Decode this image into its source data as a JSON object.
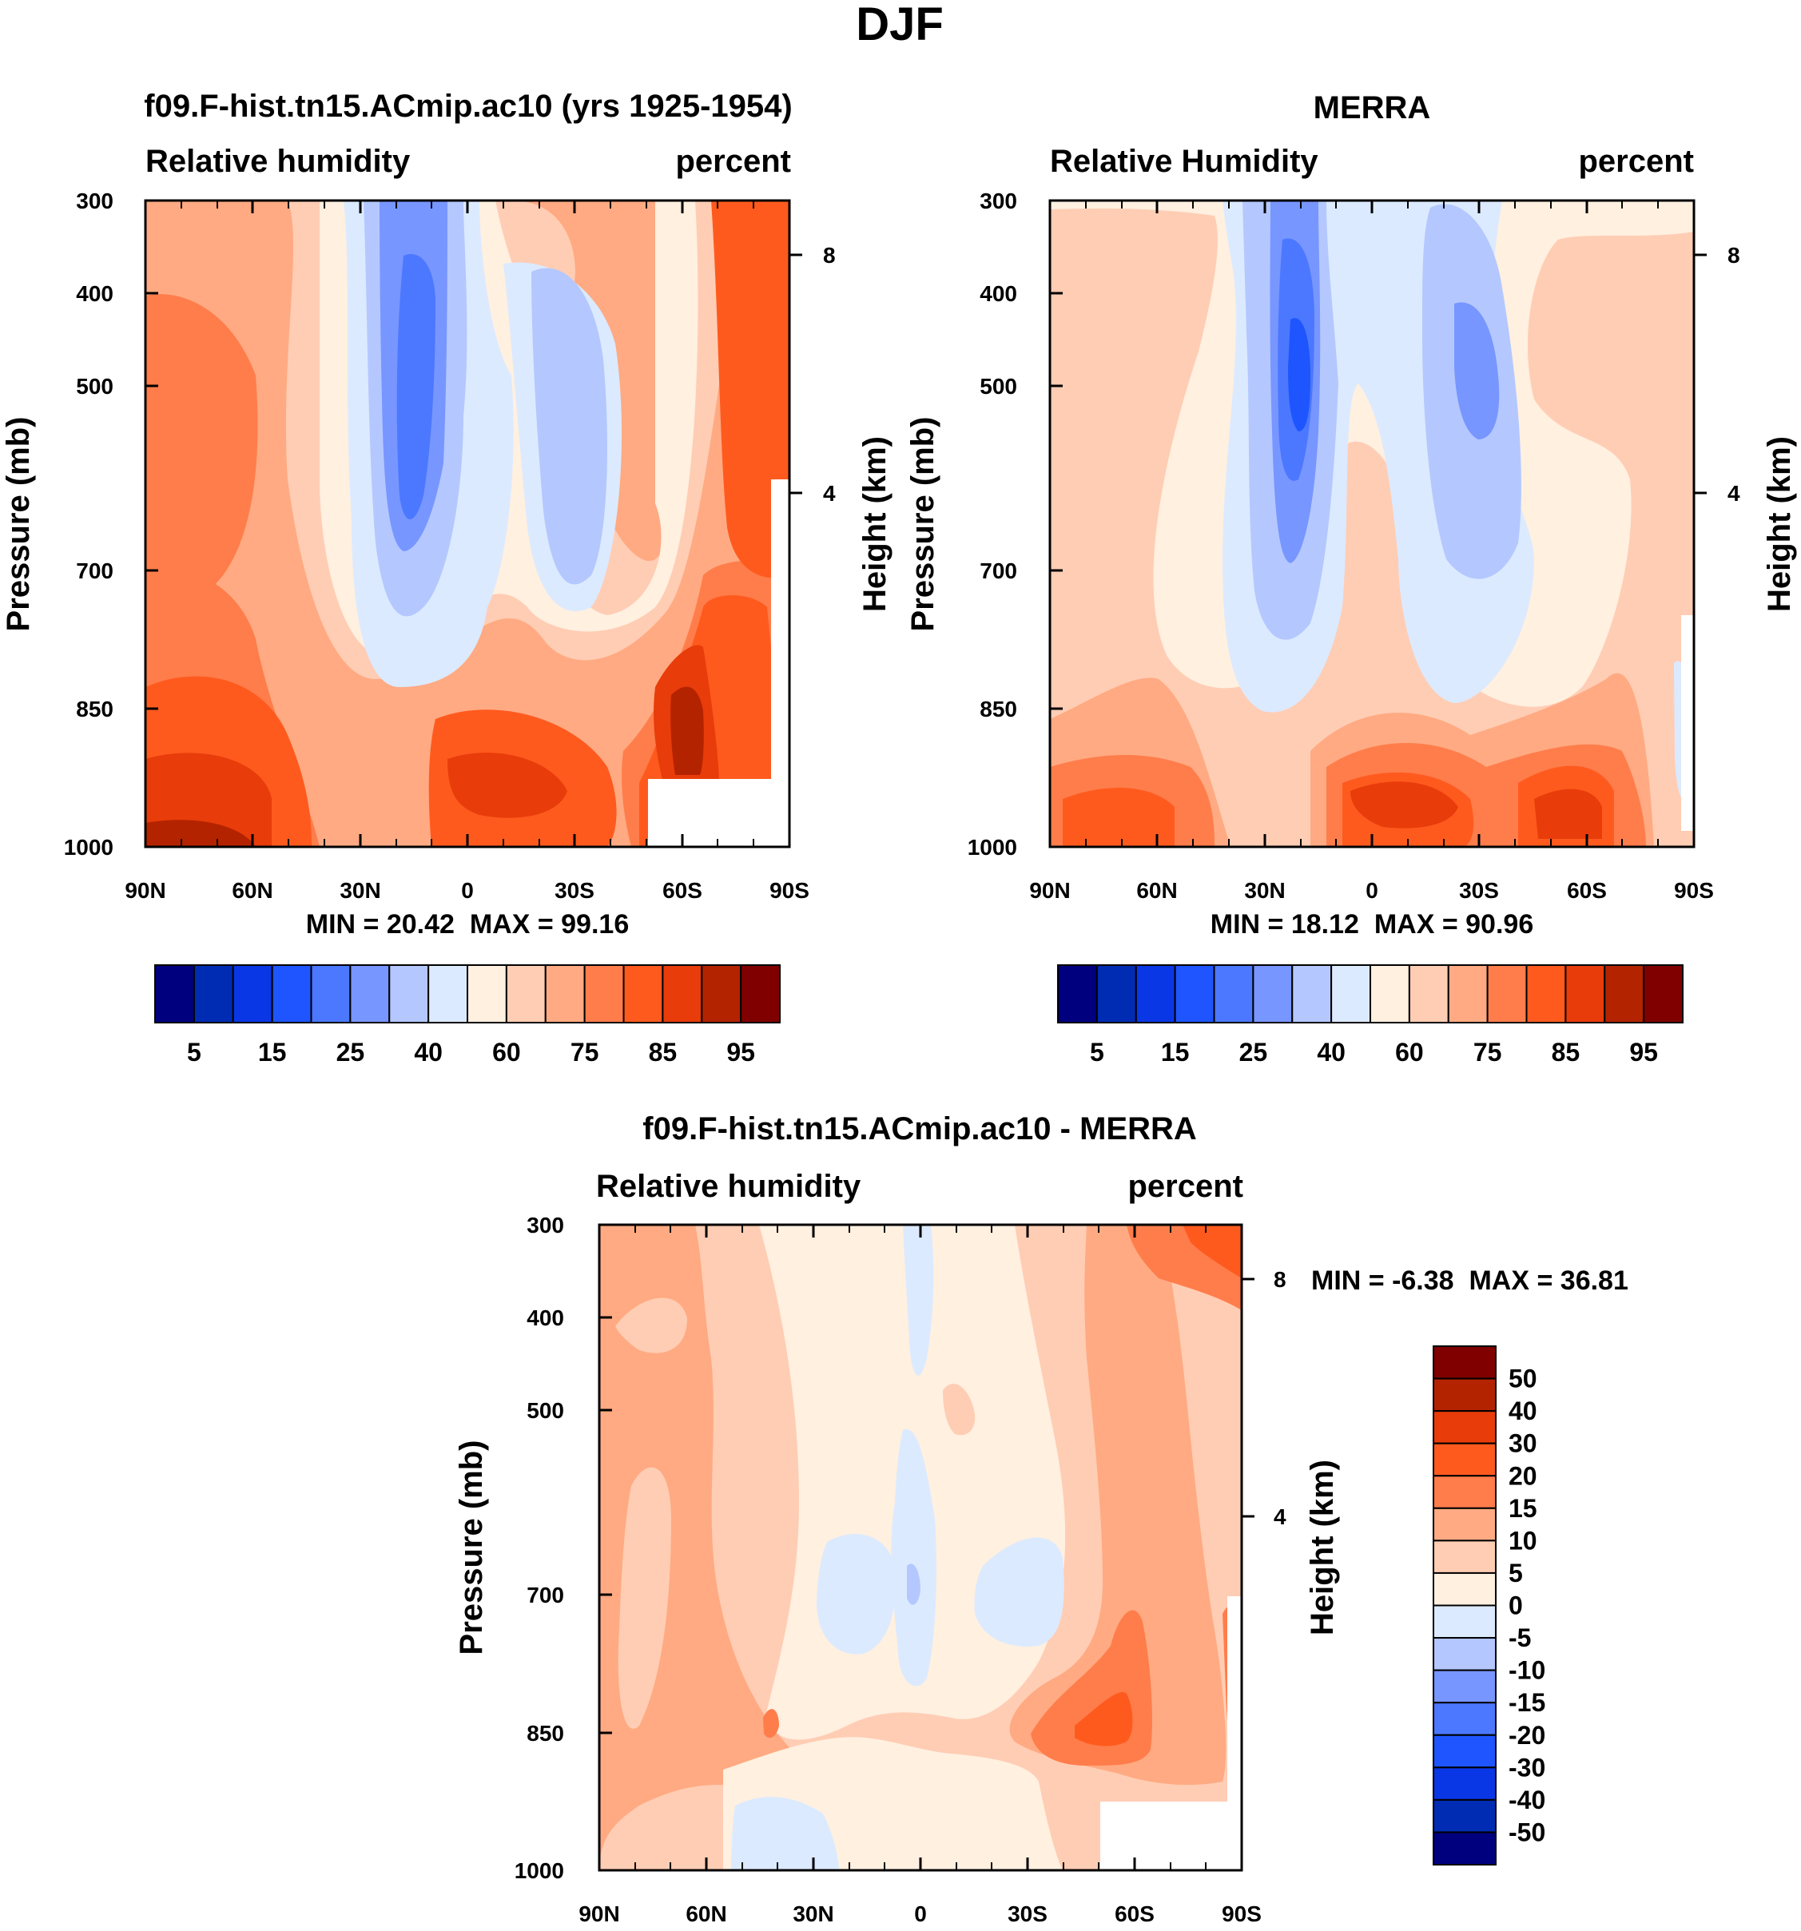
{
  "figure_title": "DJF",
  "chart_data": [
    {
      "id": "model",
      "type": "heatmap",
      "title": "f09.F-hist.tn15.ACmip.ac10 (yrs 1925-1954)",
      "left_label": "Relative humidity",
      "right_label": "percent",
      "xlabel": "",
      "ylabel": "Pressure (mb)",
      "y2label": "Height (km)",
      "x_ticks": [
        "90N",
        "60N",
        "30N",
        "0",
        "30S",
        "60S",
        "90S"
      ],
      "y_ticks": [
        "300",
        "400",
        "500",
        "700",
        "850",
        "1000"
      ],
      "y2_ticks": [
        "8",
        "4"
      ],
      "min_label": "MIN =",
      "min_value": "20.42",
      "max_label": "MAX =",
      "max_value": "99.16",
      "xlim": [
        90,
        -90
      ],
      "ylim": [
        1000,
        300
      ],
      "contour_levels": [
        5,
        10,
        15,
        20,
        25,
        30,
        40,
        50,
        60,
        70,
        75,
        80,
        85,
        90,
        95
      ],
      "contour_fill": "zonal-mean relative humidity, %: high values (85-99) near surface at 90N and 60S, dry minima about 20 near 20N and about 35 near 25S at 400-600 mb, wet tongue near the equator"
    },
    {
      "id": "obs",
      "type": "heatmap",
      "title": "MERRA",
      "left_label": "Relative Humidity",
      "right_label": "percent",
      "xlabel": "",
      "ylabel": "Pressure (mb)",
      "y2label": "Height (km)",
      "x_ticks": [
        "90N",
        "60N",
        "30N",
        "0",
        "30S",
        "60S",
        "90S"
      ],
      "y_ticks": [
        "300",
        "400",
        "500",
        "700",
        "850",
        "1000"
      ],
      "y2_ticks": [
        "8",
        "4"
      ],
      "min_label": "MIN =",
      "min_value": "18.12",
      "max_label": "MAX =",
      "max_value": "90.96",
      "xlim": [
        90,
        -90
      ],
      "ylim": [
        1000,
        300
      ],
      "contour_levels": [
        5,
        10,
        15,
        20,
        25,
        30,
        40,
        50,
        60,
        70,
        75,
        80,
        85,
        90,
        95
      ],
      "contour_fill": "zonal-mean relative humidity, %: 80-90 in boundary layer near 10N, 60N and 60S, dry minima about 18 near 18N and about 30 near 30S at 450-550 mb"
    },
    {
      "id": "diff",
      "type": "heatmap",
      "title": "f09.F-hist.tn15.ACmip.ac10 - MERRA",
      "left_label": "Relative humidity",
      "right_label": "percent",
      "xlabel": "",
      "ylabel": "Pressure (mb)",
      "y2label": "Height (km)",
      "x_ticks": [
        "90N",
        "60N",
        "30N",
        "0",
        "30S",
        "60S",
        "90S"
      ],
      "y_ticks": [
        "300",
        "400",
        "500",
        "700",
        "850",
        "1000"
      ],
      "y2_ticks": [
        "8",
        "4"
      ],
      "min_label": "MIN =",
      "min_value": "-6.38",
      "max_label": "MAX =",
      "max_value": "36.81",
      "xlim": [
        90,
        -90
      ],
      "ylim": [
        1000,
        300
      ],
      "contour_levels": [
        -50,
        -40,
        -30,
        -20,
        -15,
        -10,
        -5,
        0,
        5,
        10,
        15,
        20,
        30,
        40,
        50
      ],
      "contour_fill": "difference in %: mostly 0 to +15, largest +20 to +37 near 60S-90S at 300-400 mb and near 850 mb at 50S, slightly negative (-5 to 0) near 20N-20S mid troposphere"
    }
  ],
  "colorbar_abs": {
    "colors": [
      "#00007f",
      "#002cb4",
      "#0a37e6",
      "#1e55ff",
      "#4b78ff",
      "#7896ff",
      "#b4c8ff",
      "#dceaff",
      "#fff0e0",
      "#ffcdb4",
      "#ffaa82",
      "#ff7d4b",
      "#ff5a1e",
      "#e83c0a",
      "#b42300",
      "#800000"
    ],
    "tick_labels": [
      "5",
      "15",
      "25",
      "40",
      "60",
      "75",
      "85",
      "95"
    ]
  },
  "colorbar_diff": {
    "colors": [
      "#800000",
      "#b42300",
      "#e83c0a",
      "#ff5a1e",
      "#ff7d4b",
      "#ffaa82",
      "#ffcdb4",
      "#fff0e0",
      "#dceaff",
      "#b4c8ff",
      "#7896ff",
      "#4b78ff",
      "#1e55ff",
      "#0a37e6",
      "#002cb4",
      "#00007f"
    ],
    "tick_labels": [
      "50",
      "40",
      "30",
      "20",
      "15",
      "10",
      "5",
      "0",
      "-5",
      "-10",
      "-15",
      "-20",
      "-30",
      "-40",
      "-50"
    ]
  }
}
